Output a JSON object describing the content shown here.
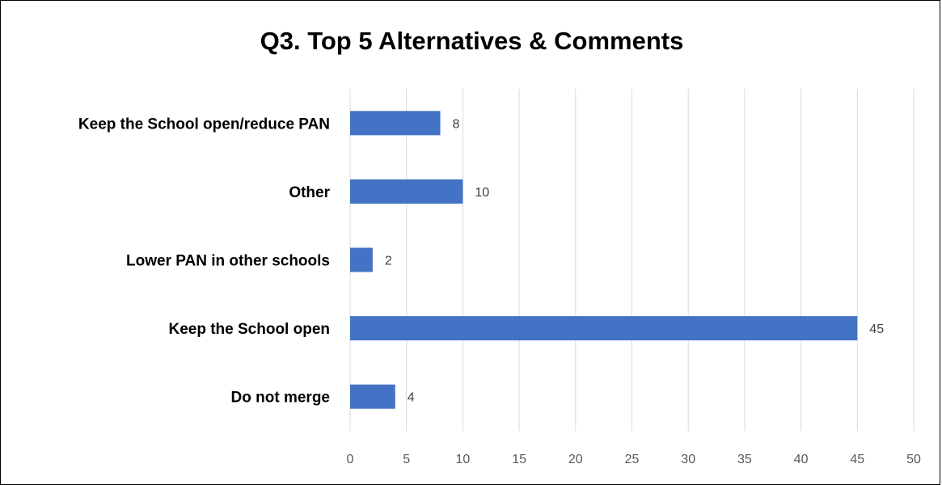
{
  "chart_data": {
    "type": "bar",
    "orientation": "horizontal",
    "title": "Q3. Top 5 Alternatives & Comments",
    "categories": [
      "Keep the School open/reduce PAN",
      "Other",
      "Lower PAN in other schools",
      "Keep the School open",
      "Do not merge"
    ],
    "values": [
      8,
      10,
      2,
      45,
      4
    ],
    "xlim": [
      0,
      50
    ],
    "xticks": [
      "0",
      "5",
      "10",
      "15",
      "20",
      "25",
      "30",
      "35",
      "40",
      "45",
      "50"
    ],
    "xlabel": "",
    "ylabel": "",
    "grid": true,
    "legend": "none",
    "data_labels": true,
    "colors": {
      "bar": "#4472C4",
      "grid": "#D9D9D9",
      "tick_text": "#595959",
      "data_label_text": "#404040"
    }
  }
}
